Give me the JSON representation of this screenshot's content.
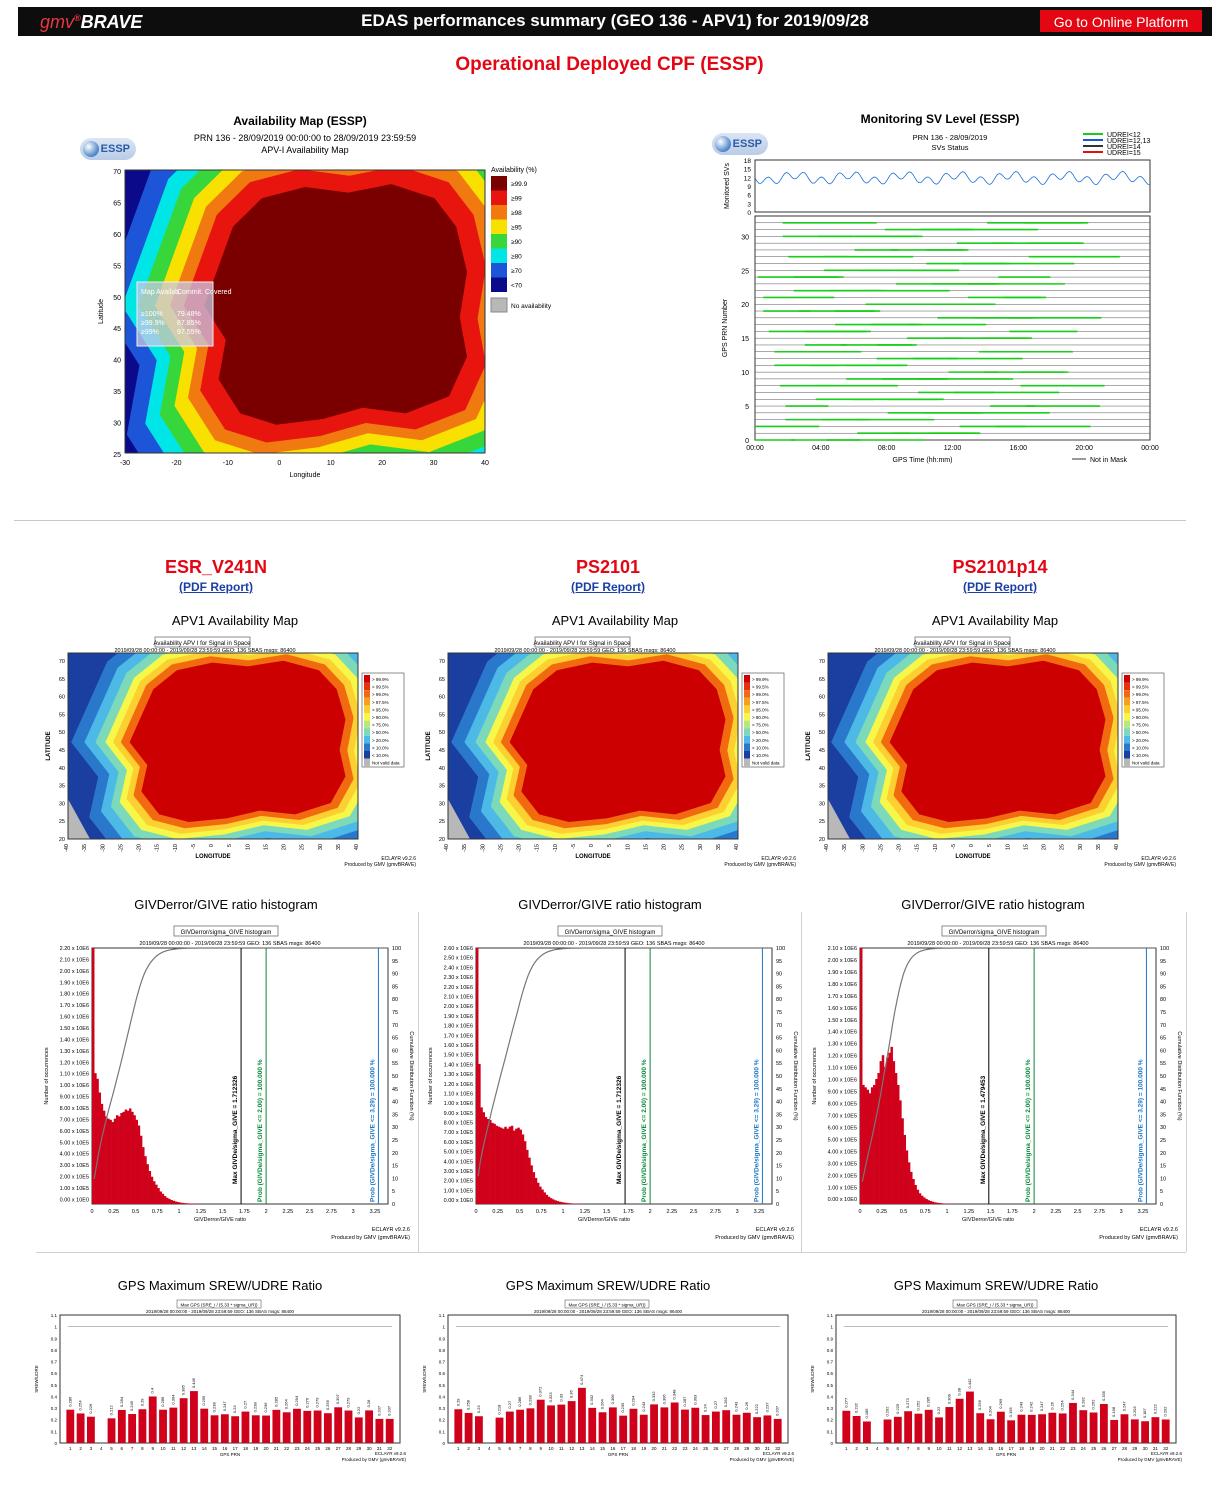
{
  "header": {
    "logo_gmv": "gmv",
    "logo_brave": "BRAVE",
    "title": "EDAS performances summary (GEO 136 - APV1) for 2019/09/28",
    "platform_button": "Go to Online Platform"
  },
  "subtitle": "Operational Deployed CPF (ESSP)",
  "availability_map": {
    "panel_title": "Availability Map (ESSP)",
    "logo_text": "ESSP",
    "line1": "PRN 136 - 28/09/2019 00:00:00 to 28/09/2019 23:59:59",
    "line2": "APV-I Availability Map",
    "legend_title": "Availability (%)",
    "legend": [
      {
        "label": "≥99.9",
        "color": "#7a0000"
      },
      {
        "label": "≥99",
        "color": "#e8150f"
      },
      {
        "label": "≥98",
        "color": "#f07a10"
      },
      {
        "label": "≥95",
        "color": "#f8e000"
      },
      {
        "label": "≥90",
        "color": "#37d63a"
      },
      {
        "label": "≥80",
        "color": "#00e6e6"
      },
      {
        "label": "≥70",
        "color": "#1c55d8"
      },
      {
        "label": "<70",
        "color": "#0a0a8a"
      }
    ],
    "no_availability": "No availability",
    "inset": {
      "h1": "Map Availab.",
      "h2": "Commit. Covered",
      "rows": [
        [
          "≥100%",
          "79.48%"
        ],
        [
          "≥99.9%",
          "87.85%"
        ],
        [
          "≥99%",
          "97.55%"
        ]
      ]
    },
    "xlabel": "Longitude",
    "ylabel": "Latitude",
    "xticks": [
      "-30",
      "-20",
      "-10",
      "0",
      "10",
      "20",
      "30",
      "40"
    ],
    "yticks": [
      "70",
      "65",
      "60",
      "55",
      "50",
      "45",
      "40",
      "35",
      "30",
      "25"
    ]
  },
  "monitoring": {
    "panel_title": "Monitoring SV Level (ESSP)",
    "logo_text": "ESSP",
    "line1": "PRN 136 - 28/09/2019",
    "line2": "SVs Status",
    "legend": [
      "UDREI<12",
      "UDREI=12,13",
      "UDREI=14",
      "UDREI=15"
    ],
    "top_ylabel": "Monitored SVs",
    "top_yticks": [
      "18",
      "15",
      "12",
      "9",
      "6",
      "3",
      "0"
    ],
    "ylabel": "GPS PRN Number",
    "yticks": [
      "30",
      "25",
      "20",
      "15",
      "10",
      "5",
      "0"
    ],
    "xlabel": "GPS Time (hh:mm)",
    "xticks": [
      "00:00",
      "04:00",
      "08:00",
      "12:00",
      "16:00",
      "20:00",
      "00:00"
    ],
    "not_in_mask": "Not in Mask"
  },
  "columns": [
    {
      "name": "ESR_V241N",
      "pdf": "(PDF Report)"
    },
    {
      "name": "PS2101",
      "pdf": "(PDF Report)"
    },
    {
      "name": "PS2101p14",
      "pdf": "(PDF Report)"
    }
  ],
  "apv1": {
    "section_title": "APV1 Availability Map",
    "box_title": "Availability APV I for Signal in Space",
    "info": "2019/09/28 00:00:00 - 2019/09/28 23:59:59  GEO: 136  SBAS msgs: 86400",
    "xlabel": "LONGITUDE",
    "ylabel": "LATITUDE",
    "yticks": [
      "70",
      "65",
      "60",
      "55",
      "50",
      "45",
      "40",
      "35",
      "30",
      "25",
      "20"
    ],
    "xticks": [
      "-40",
      "-35",
      "-30",
      "-25",
      "-20",
      "-15",
      "-10",
      "-5",
      "0",
      "5",
      "10",
      "15",
      "20",
      "25",
      "30",
      "35",
      "40"
    ],
    "legend": [
      {
        "label": "> 99.9%",
        "color": "#cc0000"
      },
      {
        "label": "> 99.5%",
        "color": "#e83010"
      },
      {
        "label": "> 99.0%",
        "color": "#f26a10"
      },
      {
        "label": "> 97.5%",
        "color": "#f6a020"
      },
      {
        "label": "> 95.0%",
        "color": "#fbd030"
      },
      {
        "label": "> 90.0%",
        "color": "#f7f74a"
      },
      {
        "label": "> 75.0%",
        "color": "#b8e87a"
      },
      {
        "label": "> 50.0%",
        "color": "#7cd9b9"
      },
      {
        "label": "> 20.0%",
        "color": "#4cb9e6"
      },
      {
        "label": "> 10.0%",
        "color": "#2a78cc"
      },
      {
        "label": "< 10.0%",
        "color": "#1a3fa0"
      },
      {
        "label": "Not valid data",
        "color": "#b8b8b8"
      }
    ],
    "footer1": "ECLAYR v9.2.6",
    "footer2": "Produced by GMV (gmvBRAVE)"
  },
  "histogram": {
    "section_title": "GIVDerror/GIVE ratio histogram",
    "box_title": "GIVDerror/sigma_GIVE histogram",
    "info": "2019/09/28 00:00:00 - 2019/09/28 23:59:59  GEO: 136  SBAS msgs: 86400",
    "xlabel": "GIVDerror/GIVE ratio",
    "ylabel": "Number of occurrences",
    "y2label": "Cumulative Distribution Function (%)",
    "xticks": [
      "0",
      "0.25",
      "0.5",
      "0.75",
      "1",
      "1.25",
      "1.5",
      "1.75",
      "2",
      "2.25",
      "2.5",
      "2.75",
      "3",
      "3.25"
    ],
    "y2ticks": [
      "100",
      "95",
      "90",
      "85",
      "80",
      "75",
      "70",
      "65",
      "60",
      "55",
      "50",
      "45",
      "40",
      "35",
      "30",
      "25",
      "20",
      "15",
      "10",
      "5",
      "0"
    ],
    "green_label": "Prob (GIVDe/sigma_GIVE <= 2.00) = 100.000 %",
    "blue_label": "Prob (GIVDe/sigma_GIVE <= 3.29) = 100.000 %",
    "footer1": "ECLAYR v9.2.6",
    "footer2": "Produced by GMV (gmvBRAVE)",
    "panels": [
      {
        "max_label": "Max GIVDe/sigma_GIVE = 1.712326",
        "max_x": 1.712326,
        "yticks": [
          "2.20 x 10E6",
          "2.10 x 10E6",
          "2.00 x 10E6",
          "1.90 x 10E6",
          "1.80 x 10E6",
          "1.70 x 10E6",
          "1.60 x 10E6",
          "1.50 x 10E6",
          "1.40 x 10E6",
          "1.30 x 10E6",
          "1.20 x 10E6",
          "1.10 x 10E6",
          "1.00 x 10E6",
          "9.00 x 10E5",
          "8.00 x 10E5",
          "7.00 x 10E5",
          "6.00 x 10E5",
          "5.00 x 10E5",
          "4.00 x 10E5",
          "3.00 x 10E5",
          "2.00 x 10E5",
          "1.00 x 10E5",
          "0.00 x 10E0"
        ]
      },
      {
        "max_label": "Max GIVDe/sigma_GIVE = 1.712326",
        "max_x": 1.712326,
        "yticks": [
          "2.60 x 10E6",
          "2.50 x 10E6",
          "2.40 x 10E6",
          "2.30 x 10E6",
          "2.20 x 10E6",
          "2.10 x 10E6",
          "2.00 x 10E6",
          "1.90 x 10E6",
          "1.80 x 10E6",
          "1.70 x 10E6",
          "1.60 x 10E6",
          "1.50 x 10E6",
          "1.40 x 10E6",
          "1.30 x 10E6",
          "1.20 x 10E6",
          "1.10 x 10E6",
          "1.00 x 10E6",
          "9.00 x 10E5",
          "8.00 x 10E5",
          "7.00 x 10E5",
          "6.00 x 10E5",
          "5.00 x 10E5",
          "4.00 x 10E5",
          "3.00 x 10E5",
          "2.00 x 10E5",
          "1.00 x 10E5",
          "0.00 x 10E0"
        ]
      },
      {
        "max_label": "Max GIVDe/sigma_GIVE = 1.479453",
        "max_x": 1.479453,
        "yticks": [
          "2.10 x 10E6",
          "2.00 x 10E6",
          "1.90 x 10E6",
          "1.80 x 10E6",
          "1.70 x 10E6",
          "1.60 x 10E6",
          "1.50 x 10E6",
          "1.40 x 10E6",
          "1.30 x 10E6",
          "1.20 x 10E6",
          "1.10 x 10E6",
          "1.00 x 10E6",
          "9.00 x 10E5",
          "8.00 x 10E5",
          "7.00 x 10E5",
          "6.00 x 10E5",
          "5.00 x 10E5",
          "4.00 x 10E5",
          "3.00 x 10E5",
          "2.00 x 10E5",
          "1.00 x 10E5",
          "0.00 x 10E0"
        ]
      }
    ]
  },
  "srew": {
    "section_title": "GPS Maximum SREW/UDRE Ratio",
    "box_title": "Max GPS (SRE_i / (5.33 * sigma_UR))",
    "info": "2019/09/28 00:00:00 - 2019/09/28 23:59:59  GEO: 136  SBAS msgs: 86400",
    "xlabel": "GPS PRN",
    "ylabel": "SREW/UDRE",
    "yticks": [
      "1.1",
      "1",
      "0.9",
      "0.8",
      "0.7",
      "0.6",
      "0.5",
      "0.4",
      "0.3",
      "0.2",
      "0.1",
      "0"
    ],
    "footer1": "ECLAYR v9.2.6",
    "footer2": "Produced by GMV (gmvBRAVE)"
  },
  "chart_data": [
    {
      "type": "bar",
      "title": "GPS Maximum SREW/UDRE Ratio",
      "series_name": "ESR_V241N",
      "xlabel": "GPS PRN",
      "ylabel": "SREW/UDRE",
      "ylim": [
        0,
        1.1
      ],
      "categories": [
        1,
        2,
        3,
        4,
        5,
        6,
        7,
        8,
        9,
        10,
        11,
        12,
        13,
        14,
        15,
        16,
        17,
        18,
        19,
        20,
        21,
        22,
        23,
        24,
        25,
        26,
        27,
        28,
        29,
        30,
        31,
        32
      ],
      "values": [
        0.286,
        0.254,
        0.226,
        0,
        0.212,
        0.284,
        0.249,
        0.29,
        0.4,
        0.286,
        0.304,
        0.385,
        0.446,
        0.295,
        0.238,
        0.247,
        0.23,
        0.27,
        0.238,
        0.236,
        0.285,
        0.264,
        0.294,
        0.276,
        0.279,
        0.256,
        0.307,
        0.279,
        0.22,
        0.28,
        0.207,
        0.207
      ],
      "labels": [
        "0.286",
        "0.254",
        "0.226",
        "",
        "0.212",
        "0.284",
        "0.249",
        "0.29",
        "0.4",
        "0.286",
        "0.304",
        "0.385",
        "0.446",
        "0.295",
        "0.238",
        "0.247",
        "0.23",
        "0.27",
        "0.238",
        "0.236",
        "0.285",
        "0.264",
        "0.294",
        "0.276",
        "0.279",
        "0.256",
        "0.307",
        "0.279",
        "0.22",
        "0.28",
        "0.207",
        "0.207"
      ]
    },
    {
      "type": "bar",
      "title": "GPS Maximum SREW/UDRE Ratio",
      "series_name": "PS2101",
      "xlabel": "GPS PRN",
      "ylabel": "SREW/UDRE",
      "ylim": [
        0,
        1.1
      ],
      "categories": [
        1,
        2,
        3,
        4,
        5,
        6,
        7,
        8,
        9,
        10,
        11,
        12,
        13,
        14,
        15,
        16,
        17,
        18,
        19,
        20,
        21,
        22,
        23,
        24,
        25,
        26,
        27,
        28,
        29,
        30,
        31,
        32
      ],
      "values": [
        0.29,
        0.258,
        0.23,
        0,
        0.218,
        0.27,
        0.286,
        0.298,
        0.372,
        0.323,
        0.33,
        0.36,
        0.474,
        0.302,
        0.264,
        0.306,
        0.235,
        0.294,
        0.243,
        0.332,
        0.306,
        0.348,
        0.287,
        0.303,
        0.24,
        0.27,
        0.282,
        0.243,
        0.26,
        0.222,
        0.237,
        0.207
      ],
      "labels": [
        "0.29",
        "0.258",
        "0.23",
        "",
        "0.218",
        "0.27",
        "0.286",
        "0.298",
        "0.372",
        "0.323",
        "0.33",
        "0.36",
        "0.474",
        "0.302",
        "0.264",
        "0.306",
        "0.235",
        "0.294",
        "0.243",
        "0.332",
        "0.306",
        "0.348",
        "0.287",
        "0.303",
        "0.24",
        "0.27",
        "0.282",
        "0.243",
        "0.26",
        "0.222",
        "0.237",
        "0.207"
      ]
    },
    {
      "type": "bar",
      "title": "GPS Maximum SREW/UDRE Ratio",
      "series_name": "PS2101p14",
      "xlabel": "GPS PRN",
      "ylabel": "SREW/UDRE",
      "ylim": [
        0,
        1.1
      ],
      "categories": [
        1,
        2,
        3,
        4,
        5,
        6,
        7,
        8,
        9,
        10,
        11,
        12,
        13,
        14,
        15,
        16,
        17,
        18,
        19,
        20,
        21,
        22,
        23,
        24,
        25,
        26,
        27,
        28,
        29,
        30,
        31,
        32
      ],
      "values": [
        0.277,
        0.232,
        0.185,
        0,
        0.202,
        0.225,
        0.273,
        0.252,
        0.285,
        0.22,
        0.309,
        0.38,
        0.442,
        0.256,
        0.204,
        0.269,
        0.195,
        0.243,
        0.242,
        0.247,
        0.26,
        0.254,
        0.344,
        0.282,
        0.262,
        0.335,
        0.198,
        0.247,
        0.203,
        0.187,
        0.222,
        0.202
      ],
      "labels": [
        "0.277",
        "0.232",
        "0.185",
        "",
        "0.202",
        "0.225",
        "0.273",
        "0.252",
        "0.285",
        "0.22",
        "0.309",
        "0.38",
        "0.442",
        "0.256",
        "0.204",
        "0.269",
        "0.195",
        "0.243",
        "0.242",
        "0.247",
        "0.26",
        "0.254",
        "0.344",
        "0.282",
        "0.262",
        "0.335",
        "0.198",
        "0.247",
        "0.203",
        "0.187",
        "0.222",
        "0.202"
      ]
    },
    {
      "type": "bar",
      "title": "GIVDerror/GIVE ratio histogram",
      "series_name": "ESR_V241N",
      "xlabel": "GIVDerror/GIVE ratio",
      "ylabel": "Number of occurrences",
      "xlim": [
        0,
        3.4
      ],
      "ylim": [
        0,
        2250000
      ],
      "x": [
        0.0,
        0.025,
        0.05,
        0.075,
        0.1,
        0.125,
        0.15,
        0.175,
        0.2,
        0.225,
        0.25,
        0.275,
        0.3,
        0.325,
        0.35,
        0.375,
        0.4,
        0.425,
        0.45,
        0.475,
        0.5,
        0.525,
        0.55,
        0.575,
        0.6,
        0.625,
        0.65,
        0.675,
        0.7,
        0.725,
        0.75,
        0.775,
        0.8,
        0.825,
        0.85,
        0.875,
        0.9,
        0.925,
        0.95,
        0.975,
        1.0,
        1.025,
        1.05,
        1.075,
        1.1,
        1.125,
        1.15,
        1.175,
        1.2,
        1.225,
        1.25,
        1.275,
        1.3
      ],
      "values": [
        2250000,
        1150000,
        1100000,
        980000,
        880000,
        820000,
        770000,
        750000,
        740000,
        720000,
        750000,
        780000,
        770000,
        800000,
        810000,
        830000,
        820000,
        840000,
        810000,
        780000,
        740000,
        690000,
        600000,
        500000,
        420000,
        350000,
        290000,
        240000,
        200000,
        170000,
        140000,
        110000,
        90000,
        70000,
        55000,
        45000,
        35000,
        28000,
        22000,
        17000,
        13000,
        10000,
        8000,
        6000,
        5000,
        4000,
        3000,
        2500,
        2000,
        1500,
        1200,
        900,
        600
      ]
    },
    {
      "type": "bar",
      "title": "GIVDerror/GIVE ratio histogram",
      "series_name": "PS2101",
      "xlabel": "GIVDerror/GIVE ratio",
      "ylabel": "Number of occurrences",
      "xlim": [
        0,
        3.4
      ],
      "ylim": [
        0,
        2650000
      ],
      "x": [
        0.0,
        0.025,
        0.05,
        0.075,
        0.1,
        0.125,
        0.15,
        0.175,
        0.2,
        0.225,
        0.25,
        0.275,
        0.3,
        0.325,
        0.35,
        0.375,
        0.4,
        0.425,
        0.45,
        0.475,
        0.5,
        0.525,
        0.55,
        0.575,
        0.6,
        0.625,
        0.65,
        0.675,
        0.7,
        0.725,
        0.75,
        0.775,
        0.8,
        0.825,
        0.85,
        0.875,
        0.9,
        0.925,
        0.95,
        0.975,
        1.0,
        1.025,
        1.05,
        1.075,
        1.1,
        1.125,
        1.15,
        1.175,
        1.2,
        1.225,
        1.25,
        1.275,
        1.3
      ],
      "values": [
        2650000,
        1450000,
        1000000,
        950000,
        900000,
        880000,
        870000,
        840000,
        830000,
        810000,
        800000,
        790000,
        780000,
        800000,
        780000,
        800000,
        810000,
        760000,
        780000,
        790000,
        770000,
        720000,
        650000,
        560000,
        480000,
        400000,
        330000,
        270000,
        220000,
        180000,
        150000,
        120000,
        95000,
        75000,
        60000,
        48000,
        38000,
        30000,
        24000,
        19000,
        15000,
        12000,
        9000,
        7000,
        5500,
        4200,
        3300,
        2600,
        2000,
        1500,
        1200,
        900,
        600
      ]
    },
    {
      "type": "bar",
      "title": "GIVDerror/GIVE ratio histogram",
      "series_name": "PS2101p14",
      "xlabel": "GIVDerror/GIVE ratio",
      "ylabel": "Number of occurrences",
      "xlim": [
        0,
        3.4
      ],
      "ylim": [
        0,
        2150000
      ],
      "x": [
        0.0,
        0.025,
        0.05,
        0.075,
        0.1,
        0.125,
        0.15,
        0.175,
        0.2,
        0.225,
        0.25,
        0.275,
        0.3,
        0.325,
        0.35,
        0.375,
        0.4,
        0.425,
        0.45,
        0.475,
        0.5,
        0.525,
        0.55,
        0.575,
        0.6,
        0.625,
        0.65,
        0.675,
        0.7,
        0.725,
        0.75,
        0.775,
        0.8,
        0.825,
        0.85,
        0.875,
        0.9,
        0.925,
        0.95,
        0.975,
        1.0,
        1.025,
        1.05,
        1.075,
        1.1,
        1.125,
        1.15,
        1.175,
        1.2,
        1.225,
        1.25,
        1.275,
        1.3
      ],
      "values": [
        2150000,
        1000000,
        980000,
        960000,
        930000,
        980000,
        1000000,
        1050000,
        1100000,
        1200000,
        1250000,
        1150000,
        1230000,
        1270000,
        1320000,
        1200000,
        1100000,
        1000000,
        870000,
        720000,
        580000,
        450000,
        350000,
        270000,
        210000,
        160000,
        120000,
        90000,
        70000,
        55000,
        42000,
        32000,
        25000,
        19000,
        14000,
        11000,
        8000,
        6000,
        4500,
        3500,
        2700,
        2000,
        1500,
        1200,
        900,
        700,
        500,
        400,
        300,
        250,
        200,
        150,
        100
      ]
    }
  ]
}
